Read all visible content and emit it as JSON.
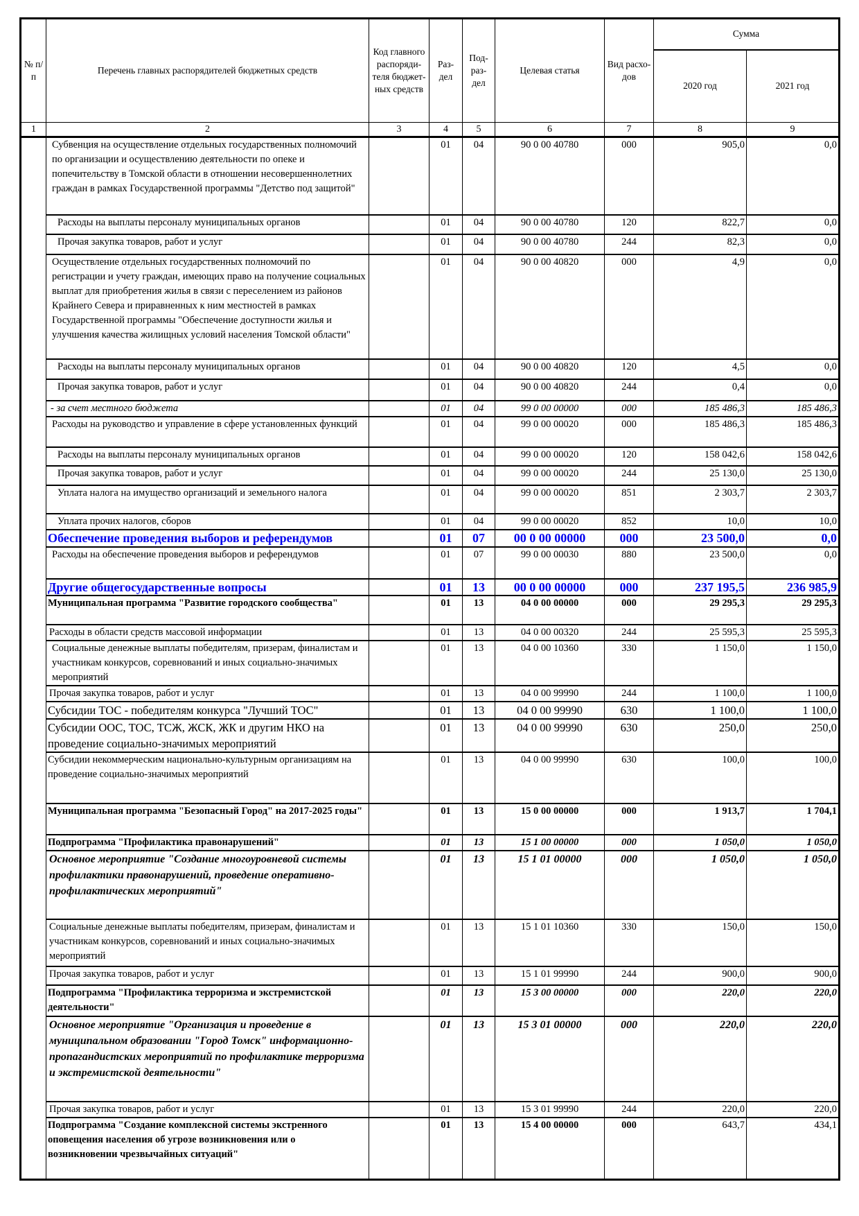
{
  "accent_color": "#0000ee",
  "header": {
    "num": "№ п/п",
    "name": "Перечень главных распорядителей бюджетных средств",
    "code": "Код главного распоряди-теля бюджет-ных средств",
    "section": "Раз-дел",
    "subsection": "Под-раз-дел",
    "target": "Целевая статья",
    "type": "Вид расхо-дов",
    "sum": "Сумма",
    "y2020": "2020 год",
    "y2021": "2021 год"
  },
  "column_numbers": [
    "1",
    "2",
    "3",
    "4",
    "5",
    "6",
    "7",
    "8",
    "9"
  ],
  "rows": [
    {
      "name": "Субвенция на осуществление отдельных государственных полномочий по организации и осуществлению деятельности по опеке и попечительству в Томской области в отношении несовершеннолетних граждан в рамках Государственной программы \"Детство под защитой\"",
      "section": "01",
      "subsection": "04",
      "target": "90 0 00 40780",
      "type": "000",
      "sum2020": "905,0",
      "sum2021": "0,0"
    },
    {
      "name": "Расходы на выплаты персоналу муниципальных органов",
      "section": "01",
      "subsection": "04",
      "target": "90 0 00 40780",
      "type": "120",
      "sum2020": "822,7",
      "sum2021": "0,0"
    },
    {
      "name": "Прочая закупка товаров, работ и услуг",
      "section": "01",
      "subsection": "04",
      "target": "90 0 00 40780",
      "type": "244",
      "sum2020": "82,3",
      "sum2021": "0,0"
    },
    {
      "name": "Осуществление отдельных государственных полномочий по регистрации и учету граждан, имеющих право на получение социальных выплат для приобретения жилья в связи с переселением из районов Крайнего Севера и приравненных к ним местностей в рамках Государственной программы \"Обеспечение доступности жилья и улучшения качества жилищных условий населения Томской области\"",
      "section": "01",
      "subsection": "04",
      "target": "90 0 00 40820",
      "type": "000",
      "sum2020": "4,9",
      "sum2021": "0,0"
    },
    {
      "name": "Расходы на выплаты персоналу муниципальных органов",
      "section": "01",
      "subsection": "04",
      "target": "90 0 00 40820",
      "type": "120",
      "sum2020": "4,5",
      "sum2021": "0,0"
    },
    {
      "name": "Прочая закупка товаров, работ и услуг",
      "section": "01",
      "subsection": "04",
      "target": "90 0 00 40820",
      "type": "244",
      "sum2020": "0,4",
      "sum2021": "0,0"
    },
    {
      "name": "- за счет местного бюджета",
      "section": "01",
      "subsection": "04",
      "target": "99 0 00 00000",
      "type": "000",
      "sum2020": "185 486,3",
      "sum2021": "185 486,3"
    },
    {
      "name": "Расходы на руководство и управление в сфере установленных функций",
      "section": "01",
      "subsection": "04",
      "target": "99 0 00 00020",
      "type": "000",
      "sum2020": "185 486,3",
      "sum2021": "185 486,3"
    },
    {
      "name": "Расходы на выплаты персоналу муниципальных органов",
      "section": "01",
      "subsection": "04",
      "target": "99 0 00 00020",
      "type": "120",
      "sum2020": "158 042,6",
      "sum2021": "158 042,6"
    },
    {
      "name": "Прочая закупка товаров, работ и услуг",
      "section": "01",
      "subsection": "04",
      "target": "99 0 00 00020",
      "type": "244",
      "sum2020": "25 130,0",
      "sum2021": "25 130,0"
    },
    {
      "name": "Уплата налога на имущество организаций и земельного налога",
      "section": "01",
      "subsection": "04",
      "target": "99 0 00 00020",
      "type": "851",
      "sum2020": "2 303,7",
      "sum2021": "2 303,7"
    },
    {
      "name": "Уплата прочих налогов, сборов",
      "section": "01",
      "subsection": "04",
      "target": "99 0 00 00020",
      "type": "852",
      "sum2020": "10,0",
      "sum2021": "10,0"
    },
    {
      "name": "Обеспечение проведения выборов и референдумов",
      "section": "01",
      "subsection": "07",
      "target": "00 0 00 00000",
      "type": "000",
      "sum2020": "23 500,0",
      "sum2021": "0,0"
    },
    {
      "name": "Расходы на обеспечение проведения выборов и референдумов",
      "section": "01",
      "subsection": "07",
      "target": "99 0 00 00030",
      "type": "880",
      "sum2020": "23 500,0",
      "sum2021": "0,0"
    },
    {
      "name": "Другие общегосударственные вопросы",
      "section": "01",
      "subsection": "13",
      "target": "00 0 00 00000",
      "type": "000",
      "sum2020": "237 195,5",
      "sum2021": "236 985,9"
    },
    {
      "name": "Муниципальная программа \"Развитие городского сообщества\"",
      "section": "01",
      "subsection": "13",
      "target": "04 0 00 00000",
      "type": "000",
      "sum2020": "29 295,3",
      "sum2021": "29 295,3"
    },
    {
      "name": "Расходы в области средств массовой информации",
      "section": "01",
      "subsection": "13",
      "target": "04 0 00 00320",
      "type": "244",
      "sum2020": "25 595,3",
      "sum2021": "25 595,3"
    },
    {
      "name": "Социальные денежные выплаты победителям, призерам, финалистам и участникам конкурсов, соревнований и иных социально-значимых мероприятий",
      "section": "01",
      "subsection": "13",
      "target": "04 0 00 10360",
      "type": "330",
      "sum2020": "1 150,0",
      "sum2021": "1 150,0"
    },
    {
      "name": "Прочая закупка товаров, работ и услуг",
      "section": "01",
      "subsection": "13",
      "target": "04 0 00 99990",
      "type": "244",
      "sum2020": "1 100,0",
      "sum2021": "1 100,0"
    },
    {
      "name": "Субсидии ТОС - победителям конкурса \"Лучший ТОС\"",
      "section": "01",
      "subsection": "13",
      "target": "04 0 00 99990",
      "type": "630",
      "sum2020": "1 100,0",
      "sum2021": "1 100,0"
    },
    {
      "name": "Субсидии ООС, ТОС, ТСЖ, ЖСК, ЖК и другим НКО на проведение социально-значимых мероприятий",
      "section": "01",
      "subsection": "13",
      "target": "04 0 00 99990",
      "type": "630",
      "sum2020": "250,0",
      "sum2021": "250,0"
    },
    {
      "name": "Субсидии некоммерческим национально-культурным организациям на проведение социально-значимых мероприятий",
      "section": "01",
      "subsection": "13",
      "target": "04 0 00 99990",
      "type": "630",
      "sum2020": "100,0",
      "sum2021": "100,0"
    },
    {
      "name": "Муниципальная программа \"Безопасный Город\" на 2017-2025 годы\"",
      "section": "01",
      "subsection": "13",
      "target": "15 0 00 00000",
      "type": "000",
      "sum2020": "1 913,7",
      "sum2021": "1 704,1"
    },
    {
      "name": "Подпрограмма \"Профилактика правонарушений\"",
      "section": "01",
      "subsection": "13",
      "target": "15 1 00 00000",
      "type": "000",
      "sum2020": "1 050,0",
      "sum2021": "1 050,0"
    },
    {
      "name": "Основное мероприятие \"Создание многоуровневой системы профилактики правонарушений, проведение оперативно-профилактических мероприятий\"",
      "section": "01",
      "subsection": "13",
      "target": "15 1 01 00000",
      "type": "000",
      "sum2020": "1 050,0",
      "sum2021": "1 050,0"
    },
    {
      "name": "Социальные денежные выплаты победителям, призерам, финалистам и участникам конкурсов, соревнований и иных социально-значимых мероприятий",
      "section": "01",
      "subsection": "13",
      "target": "15 1 01 10360",
      "type": "330",
      "sum2020": "150,0",
      "sum2021": "150,0"
    },
    {
      "name": "Прочая закупка товаров, работ и услуг",
      "section": "01",
      "subsection": "13",
      "target": "15 1 01 99990",
      "type": "244",
      "sum2020": "900,0",
      "sum2021": "900,0"
    },
    {
      "name": "Подпрограмма \"Профилактика терроризма и экстремистской деятельности\"",
      "section": "01",
      "subsection": "13",
      "target": "15 3 00 00000",
      "type": "000",
      "sum2020": "220,0",
      "sum2021": "220,0"
    },
    {
      "name": "Основное мероприятие \"Организация и проведение в муниципальном образовании \"Город Томск\" информационно-пропагандистских мероприятий по профилактике терроризма и экстремистской деятельности\"",
      "section": "01",
      "subsection": "13",
      "target": "15 3 01 00000",
      "type": "000",
      "sum2020": "220,0",
      "sum2021": "220,0"
    },
    {
      "name": "Прочая закупка товаров, работ и услуг",
      "section": "01",
      "subsection": "13",
      "target": "15 3 01 99990",
      "type": "244",
      "sum2020": "220,0",
      "sum2021": "220,0"
    },
    {
      "name": "Подпрограмма \"Создание комплексной системы экстренного оповещения населения об угрозе возникновения или о возникновении чрезвычайных ситуаций\"",
      "section": "01",
      "subsection": "13",
      "target": "15 4 00 00000",
      "type": "000",
      "sum2020": "643,7",
      "sum2021": "434,1"
    }
  ]
}
